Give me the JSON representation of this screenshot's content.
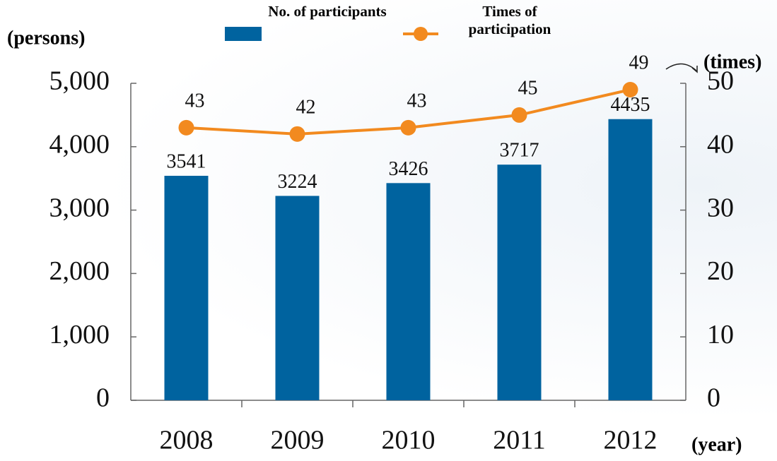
{
  "chart_data": {
    "type": "bar",
    "y_label": "(persons)",
    "y2_label": "(times)",
    "x_label": "(year)",
    "categories": [
      "2008",
      "2009",
      "2010",
      "2011",
      "2012"
    ],
    "series": [
      {
        "name": "No. of participants",
        "type": "bar",
        "color": "#00639f",
        "values": [
          3541,
          3224,
          3426,
          3717,
          4435
        ]
      },
      {
        "name": "Times of participation",
        "type": "line",
        "axis": "y2",
        "color": "#f28a1f",
        "values": [
          43,
          42,
          43,
          45,
          49
        ]
      }
    ],
    "ylim": [
      0,
      5000
    ],
    "yticks": [
      0,
      {
        "value": 1000,
        "label": "1,000"
      },
      {
        "value": 2000,
        "label": "2,000"
      },
      {
        "value": 3000,
        "label": "3,000"
      },
      {
        "value": 4000,
        "label": "4,000"
      },
      {
        "value": 5000,
        "label": "5,000"
      }
    ],
    "y2lim": [
      0,
      50
    ],
    "y2ticks": [
      0,
      10,
      20,
      30,
      40,
      50
    ]
  }
}
